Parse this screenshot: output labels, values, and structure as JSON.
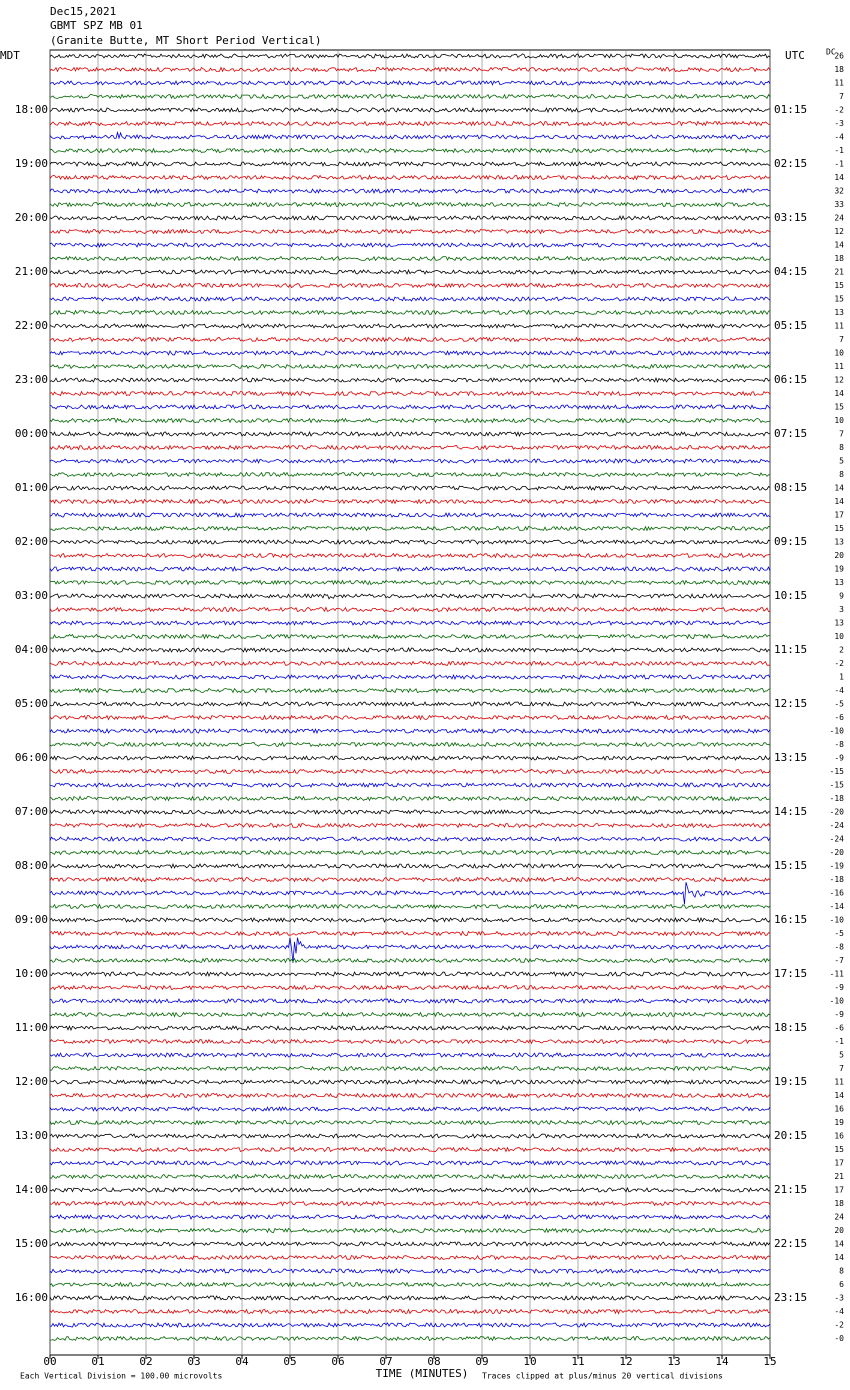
{
  "header": {
    "date": "Dec15,2021",
    "station": "GBMT SPZ MB 01",
    "location": "(Granite Butte, MT Short Period Vertical)"
  },
  "left_axis": {
    "title": "MDT",
    "labels": [
      "18:00",
      "19:00",
      "20:00",
      "21:00",
      "22:00",
      "23:00",
      "00:00",
      "01:00",
      "02:00",
      "03:00",
      "04:00",
      "05:00",
      "06:00",
      "07:00",
      "08:00",
      "09:00",
      "10:00",
      "11:00",
      "12:00",
      "13:00",
      "14:00",
      "15:00",
      "16:00"
    ]
  },
  "right_axis": {
    "title": "UTC",
    "labels": [
      "01:15",
      "02:15",
      "03:15",
      "04:15",
      "05:15",
      "06:15",
      "07:15",
      "08:15",
      "09:15",
      "10:15",
      "11:15",
      "12:15",
      "13:15",
      "14:15",
      "15:15",
      "16:15",
      "17:15",
      "18:15",
      "19:15",
      "20:15",
      "21:15",
      "22:15",
      "23:15"
    ]
  },
  "dc": {
    "title": "DC",
    "values": [
      "26",
      "18",
      "11",
      "7",
      "-2",
      "-3",
      "-4",
      "-1",
      "-1",
      "14",
      "32",
      "33",
      "24",
      "12",
      "14",
      "18",
      "21",
      "15",
      "15",
      "13",
      "11",
      "7",
      "10",
      "11",
      "12",
      "14",
      "15",
      "10",
      "7",
      "8",
      "5",
      "8",
      "14",
      "14",
      "17",
      "15",
      "13",
      "20",
      "19",
      "13",
      "9",
      "3",
      "13",
      "10",
      "2",
      "-2",
      "1",
      "-4",
      "-5",
      "-6",
      "-10",
      "-8",
      "-9",
      "-15",
      "-15",
      "-18",
      "-20",
      "-24",
      "-24",
      "-20",
      "-19",
      "-18",
      "-16",
      "-14",
      "-10",
      "-5",
      "-8",
      "-7",
      "-11",
      "-9",
      "-10",
      "-9",
      "-6",
      "-1",
      "5",
      "7",
      "11",
      "14",
      "16",
      "19",
      "16",
      "15",
      "17",
      "21",
      "17",
      "18",
      "24",
      "20",
      "14",
      "14",
      "8",
      "6",
      "-3",
      "-4",
      "-2",
      "-0"
    ]
  },
  "x_axis": {
    "title": "TIME (MINUTES)",
    "ticks": [
      "00",
      "01",
      "02",
      "03",
      "04",
      "05",
      "06",
      "07",
      "08",
      "09",
      "10",
      "11",
      "12",
      "13",
      "14",
      "15"
    ]
  },
  "footer": {
    "scale": "Each Vertical Division =  100.00 microvolts",
    "clip": "Traces clipped at plus/minus 20 vertical divisions"
  }
}
